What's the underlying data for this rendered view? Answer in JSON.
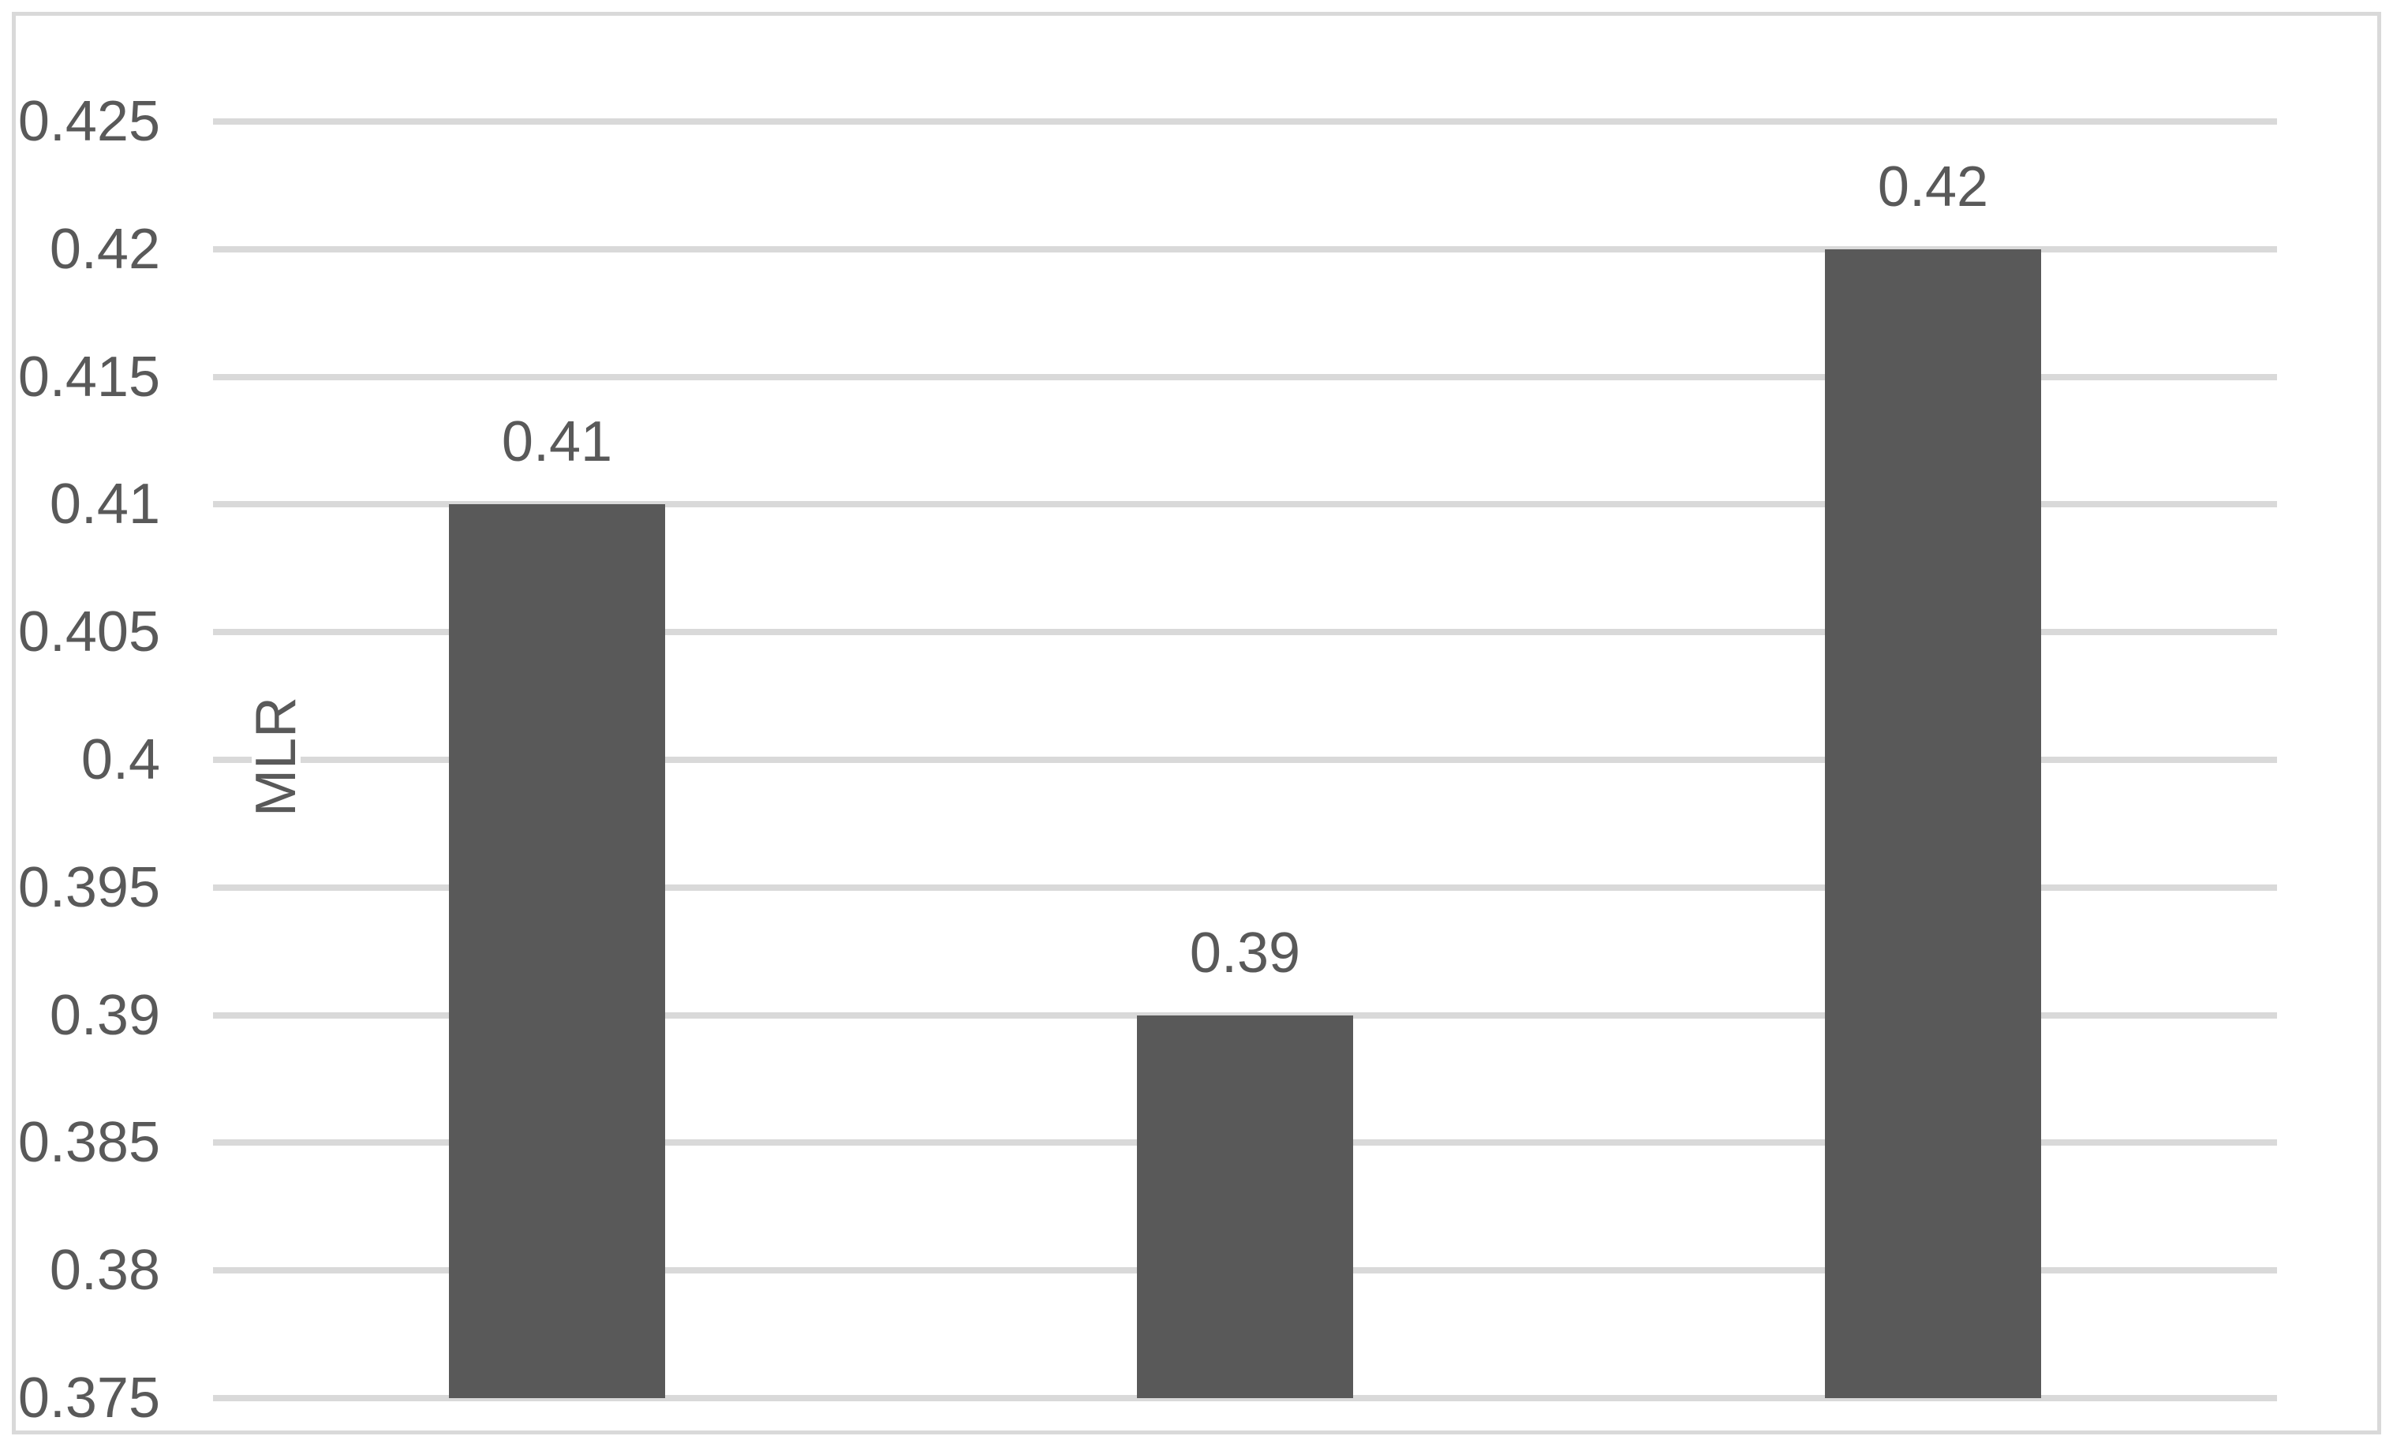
{
  "figure": {
    "background_color": "#ffffff",
    "border_color": "#d9d9d9"
  },
  "chart_data": {
    "type": "bar",
    "title": "",
    "xlabel": "",
    "ylabel": "MLR",
    "categories": [
      "",
      "",
      ""
    ],
    "values": [
      0.41,
      0.39,
      0.42
    ],
    "data_labels": [
      "0.41",
      "0.39",
      "0.42"
    ],
    "series": [
      {
        "name": "MLR",
        "values": [
          0.41,
          0.39,
          0.42
        ]
      }
    ],
    "yticks": [
      0.425,
      0.42,
      0.415,
      0.41,
      0.405,
      0.4,
      0.395,
      0.39,
      0.385,
      0.38,
      0.375
    ],
    "ytick_labels": [
      "0.425",
      "0.42",
      "0.415",
      "0.41",
      "0.405",
      "0.4",
      "0.395",
      "0.39",
      "0.385",
      "0.38",
      "0.375"
    ],
    "ylim": [
      0.375,
      0.425
    ],
    "grid": true,
    "legend": false,
    "bar_color": "#595959",
    "gridline_color": "#d9d9d9",
    "text_color": "#595959"
  }
}
